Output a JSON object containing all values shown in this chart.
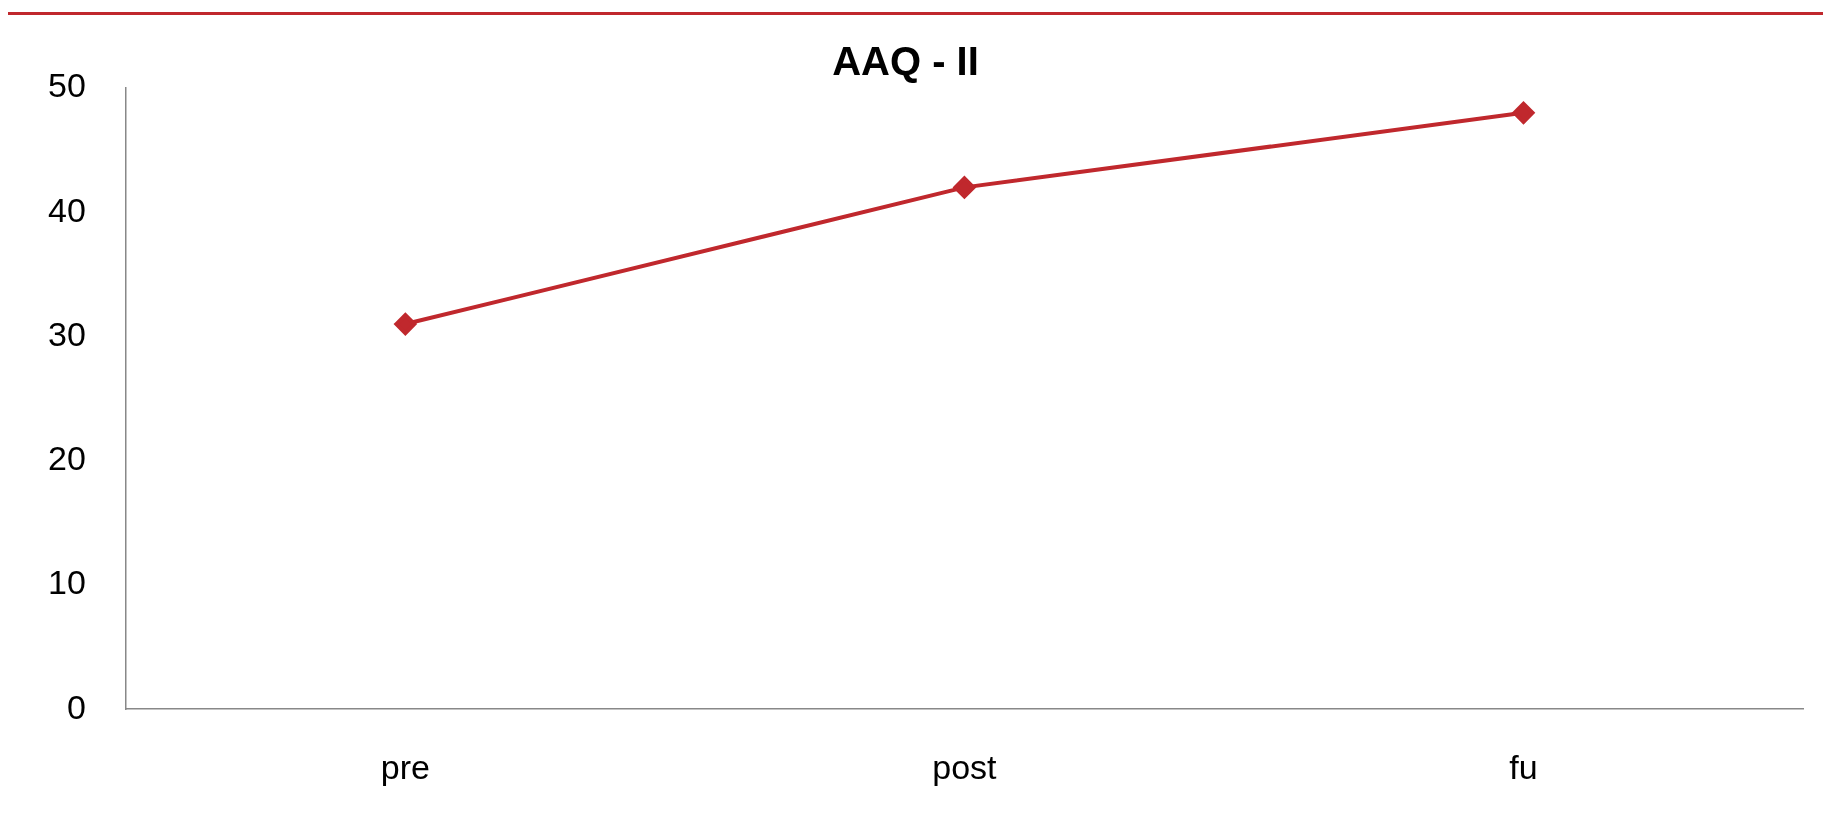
{
  "chart_data": {
    "type": "line",
    "title": "AAQ - II",
    "categories": [
      "pre",
      "post",
      "fu"
    ],
    "series": [
      {
        "color": "#c0282d",
        "values": [
          31,
          42,
          48
        ]
      }
    ],
    "ylim": [
      0,
      50
    ],
    "yticks": [
      0,
      10,
      20,
      30,
      40,
      50
    ],
    "grid": false,
    "legend": false,
    "marker": "diamond",
    "line_style": "solid"
  }
}
